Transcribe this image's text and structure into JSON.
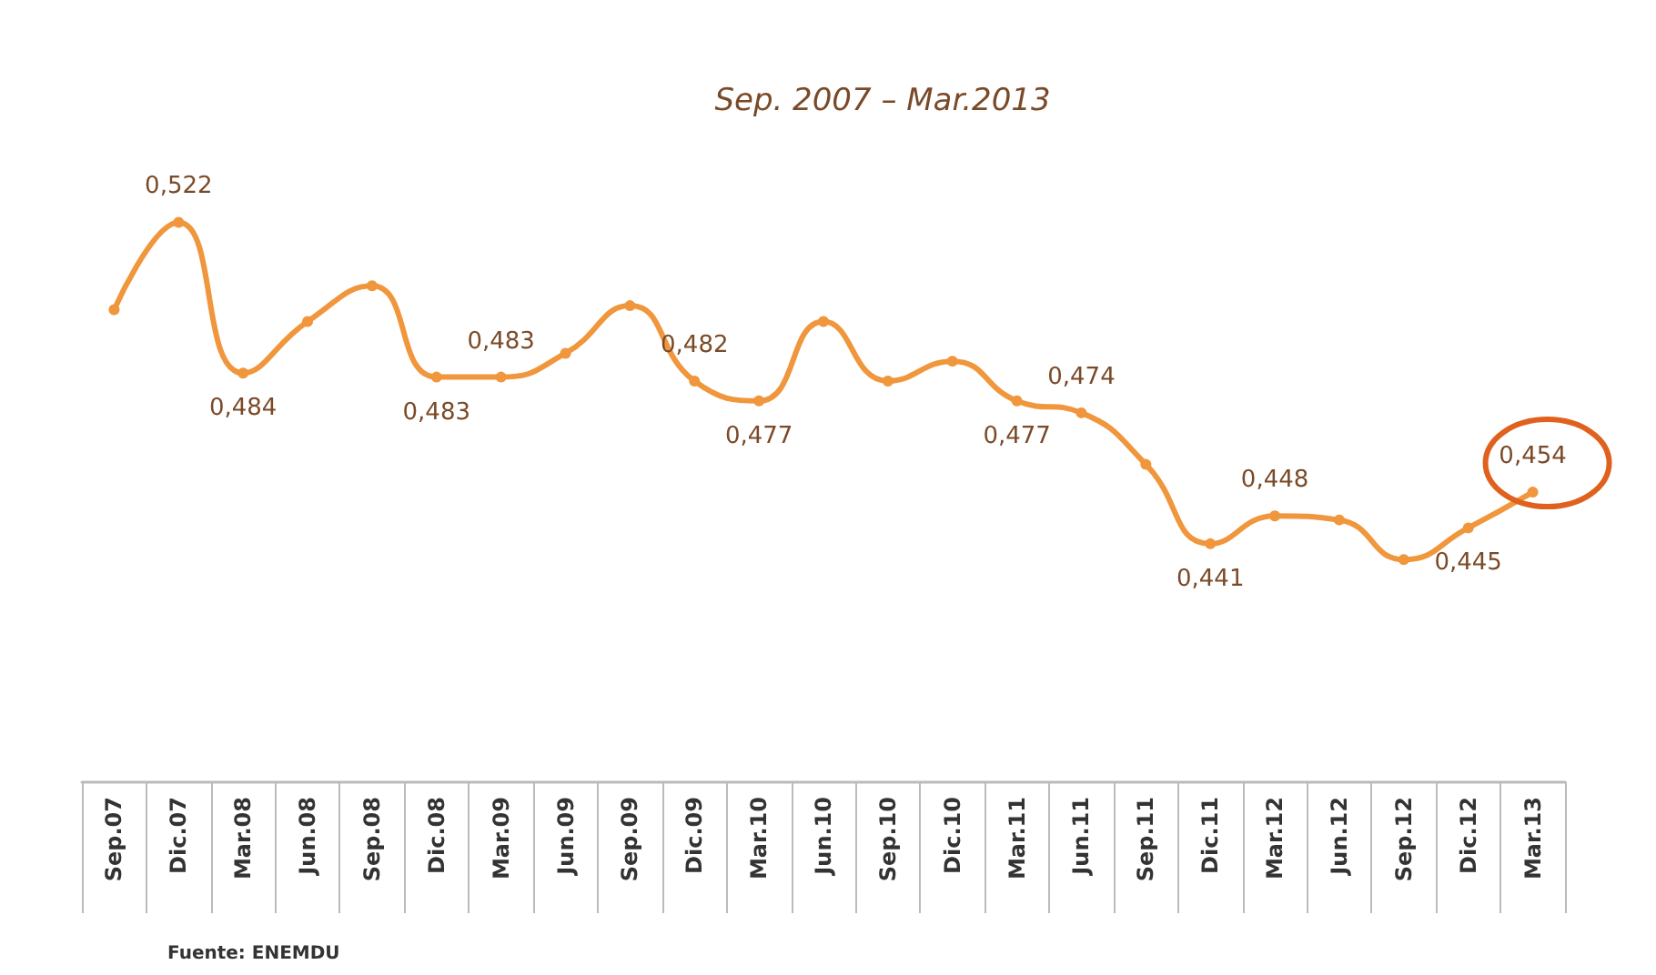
{
  "chart_data": {
    "type": "line",
    "title": "Sep. 2007 – Mar.2013",
    "categories": [
      "Sep.07",
      "Dic.07",
      "Mar.08",
      "Jun.08",
      "Sep.08",
      "Dic.08",
      "Mar.09",
      "Jun.09",
      "Sep.09",
      "Dic.09",
      "Mar.10",
      "Jun.10",
      "Sep.10",
      "Dic.10",
      "Mar.11",
      "Jun.11",
      "Sep.11",
      "Dic.11",
      "Mar.12",
      "Jun.12",
      "Sep.12",
      "Dic.12",
      "Mar.13"
    ],
    "series": [
      {
        "color": "#f0963c",
        "values": [
          0.5,
          0.522,
          0.484,
          0.497,
          0.506,
          0.483,
          0.483,
          0.489,
          0.501,
          0.482,
          0.477,
          0.497,
          0.482,
          0.487,
          0.477,
          0.474,
          0.461,
          0.441,
          0.448,
          0.447,
          0.437,
          0.445,
          0.454
        ],
        "value_labels": [
          null,
          "0,522",
          "0,484",
          null,
          null,
          "0,483",
          "0,483",
          null,
          null,
          "0,482",
          "0,477",
          null,
          null,
          null,
          "0,477",
          "0,474",
          null,
          "0,441",
          "0,448",
          null,
          null,
          "0,445",
          "0,454"
        ]
      }
    ],
    "marker": "circle",
    "grid": false,
    "annotations": [
      "Fuente: ENEMDU"
    ]
  }
}
